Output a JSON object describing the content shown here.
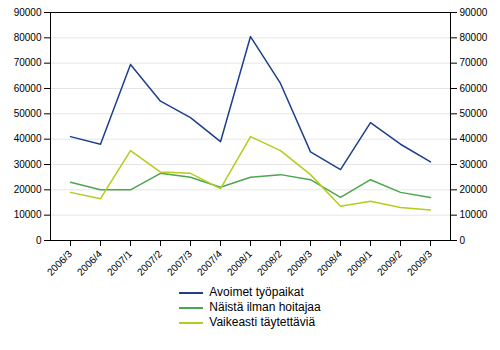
{
  "chart_data": {
    "type": "line",
    "categories": [
      "2006/3",
      "2006/4",
      "2007/1",
      "2007/2",
      "2007/3",
      "2007/4",
      "2008/1",
      "2008/2",
      "2008/3",
      "2008/4",
      "2009/1",
      "2009/2",
      "2009/3"
    ],
    "series": [
      {
        "name": "Avoimet työpaikat",
        "color": "#1e3f8c",
        "values": [
          41000,
          38000,
          69500,
          55000,
          48500,
          39000,
          80500,
          62000,
          35000,
          28000,
          46500,
          38000,
          31000
        ]
      },
      {
        "name": "Näistä ilman hoitajaa",
        "color": "#4ca64c",
        "values": [
          23000,
          20000,
          20000,
          26500,
          25000,
          21000,
          25000,
          26000,
          24000,
          17000,
          24000,
          19000,
          17000
        ]
      },
      {
        "name": "Vaikeasti täytettäviä",
        "color": "#b5cc1a",
        "values": [
          19000,
          16500,
          35500,
          27000,
          26500,
          20500,
          41000,
          35500,
          26000,
          13500,
          15500,
          13000,
          12000
        ]
      }
    ],
    "ylim": [
      0,
      90000
    ],
    "yticks": [
      0,
      10000,
      20000,
      30000,
      40000,
      50000,
      60000,
      70000,
      80000,
      90000
    ],
    "grid": true,
    "legend": "bottom"
  }
}
